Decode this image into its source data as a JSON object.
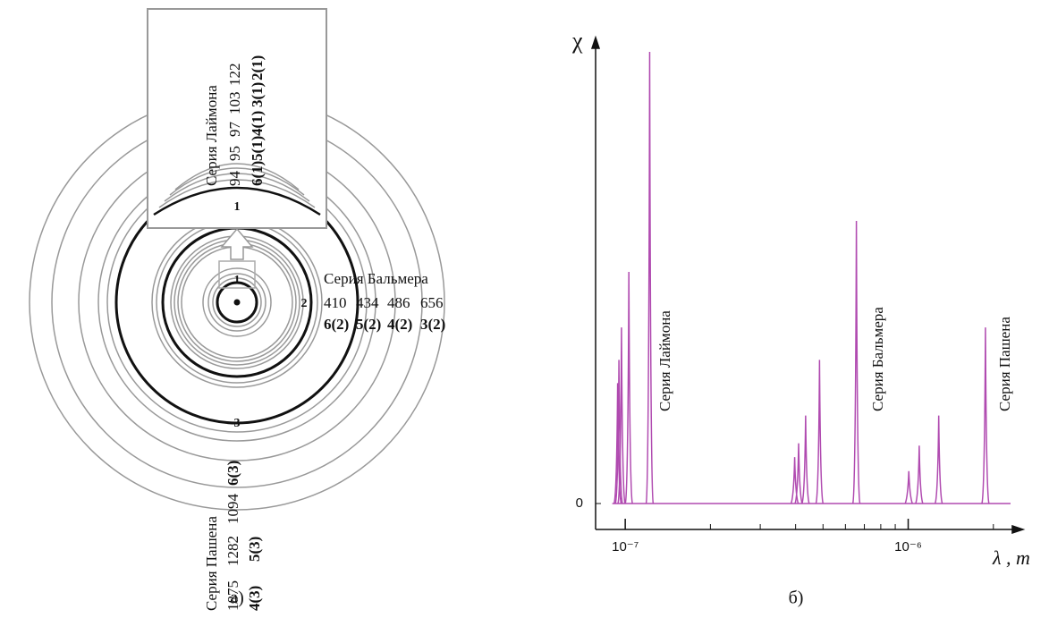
{
  "diagram": {
    "center_label": "1",
    "zoom_label": "1",
    "orbit_labels": [
      "2",
      "3"
    ],
    "lyman": {
      "title": "Серия Лаймона",
      "wavelengths": [
        94,
        95,
        97,
        103,
        122
      ],
      "transitions": [
        "6(1)",
        "5(1)",
        "4(1)",
        "3(1)",
        "2(1)"
      ]
    },
    "balmer": {
      "title": "Серия Бальмера",
      "wavelengths": [
        410,
        434,
        486,
        656
      ],
      "transitions": [
        "6(2)",
        "5(2)",
        "4(2)",
        "3(2)"
      ]
    },
    "paschen": {
      "title": "Серия Пашена",
      "wavelengths": [
        1875,
        1282,
        1094
      ],
      "transitions": [
        "4(3)",
        "5(3)",
        "6(3)"
      ]
    }
  },
  "captions": [
    "а)",
    "б)"
  ],
  "chart_data": {
    "type": "stem",
    "y_label": "χ",
    "x_label": "λ , m",
    "log_x": true,
    "color": "#b04ab0",
    "x": [
      9.4e-08,
      9.5e-08,
      9.7e-08,
      1.03e-07,
      1.22e-07,
      3.97e-07,
      4.1e-07,
      4.34e-07,
      4.86e-07,
      6.56e-07,
      1.005e-06,
      1.094e-06,
      1.282e-06,
      1.875e-06
    ],
    "values": [
      0.26,
      0.31,
      0.38,
      0.5,
      0.975,
      0.1,
      0.13,
      0.19,
      0.31,
      0.61,
      0.07,
      0.125,
      0.19,
      0.38
    ],
    "xlim": [
      7.8e-08,
      2.3e-06
    ],
    "ylim": [
      0,
      1
    ],
    "xticks": [
      {
        "value": 1e-07,
        "label": "10⁻⁷"
      },
      {
        "value": 1e-06,
        "label": "10⁻⁶"
      }
    ],
    "xminorticks": [
      2e-07,
      3e-07,
      4e-07,
      5e-07,
      6e-07,
      7e-07,
      8e-07,
      9e-07,
      2e-06
    ],
    "yticks": [
      0
    ],
    "annotations": [
      {
        "text": "Серия Лаймона",
        "x": 1.45e-07
      },
      {
        "text": "Серия Бальмера",
        "x": 8.2e-07
      },
      {
        "text": "Серия Пашена",
        "x": 2.3e-06
      }
    ]
  }
}
